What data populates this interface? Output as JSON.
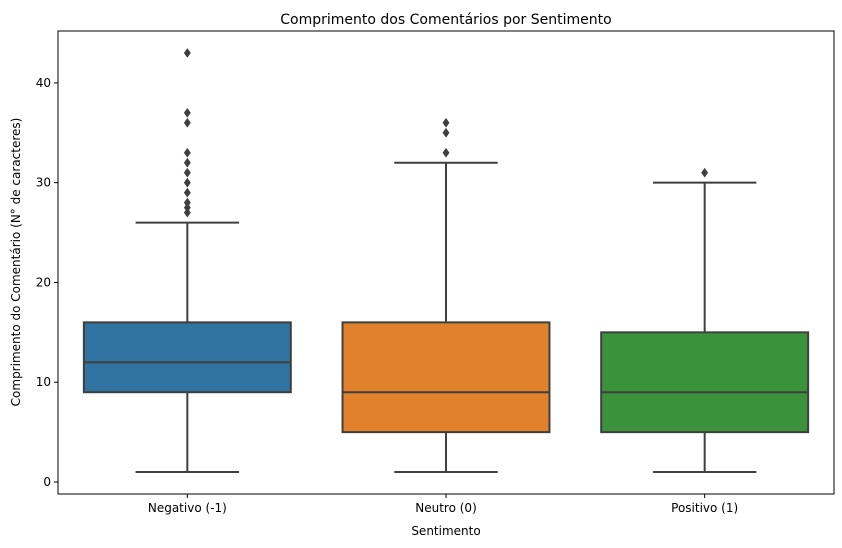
{
  "chart_data": {
    "type": "box",
    "title": "Comprimento dos Comentários por Sentimento",
    "xlabel": "Sentimento",
    "ylabel": "Comprimento do Comentário (N° de caracteres)",
    "ylim": [
      -1.2,
      45.2
    ],
    "yticks": [
      0,
      10,
      20,
      30,
      40
    ],
    "grid": false,
    "categories": [
      "Negativo (-1)",
      "Neutro (0)",
      "Positivo (1)"
    ],
    "boxes": [
      {
        "category": "Negativo (-1)",
        "color": "#3274a1",
        "whisker_low": 1,
        "q1": 9,
        "median": 12,
        "q3": 16,
        "whisker_high": 26,
        "outliers": [
          27,
          27.5,
          28,
          29,
          30,
          31,
          32,
          33,
          36,
          37,
          43
        ]
      },
      {
        "category": "Neutro (0)",
        "color": "#e1812c",
        "whisker_low": 1,
        "q1": 5,
        "median": 9,
        "q3": 16,
        "whisker_high": 32,
        "outliers": [
          33,
          35,
          36
        ]
      },
      {
        "category": "Positivo (1)",
        "color": "#3a923a",
        "whisker_low": 1,
        "q1": 5,
        "median": 9,
        "q3": 15,
        "whisker_high": 30,
        "outliers": [
          31
        ]
      }
    ],
    "line_color": "#3f3f3f"
  }
}
